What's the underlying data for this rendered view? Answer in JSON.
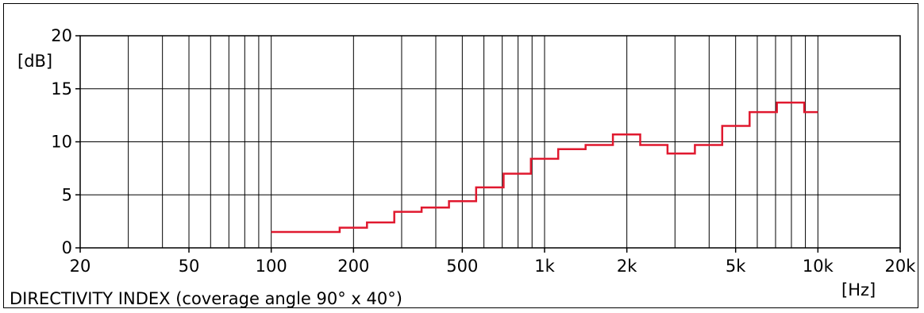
{
  "chart_data": {
    "type": "line",
    "title": "DIRECTIVITY INDEX (coverage angle 90° x 40°)",
    "xlabel": "[Hz]",
    "ylabel": "[dB]",
    "xscale": "log",
    "xlim": [
      20,
      20000
    ],
    "ylim": [
      0,
      20
    ],
    "grid": true,
    "x_ticks": [
      {
        "value": 20,
        "label": "20"
      },
      {
        "value": 50,
        "label": "50"
      },
      {
        "value": 100,
        "label": "100"
      },
      {
        "value": 200,
        "label": "200"
      },
      {
        "value": 500,
        "label": "500"
      },
      {
        "value": 1000,
        "label": "1k"
      },
      {
        "value": 2000,
        "label": "2k"
      },
      {
        "value": 5000,
        "label": "5k"
      },
      {
        "value": 10000,
        "label": "10k"
      },
      {
        "value": 20000,
        "label": "20k"
      }
    ],
    "y_ticks": [
      {
        "value": 0,
        "label": "0"
      },
      {
        "value": 5,
        "label": "5"
      },
      {
        "value": 10,
        "label": "10"
      },
      {
        "value": 15,
        "label": "15"
      },
      {
        "value": 20,
        "label": "20"
      }
    ],
    "series": [
      {
        "color": "#e0192f",
        "step": true,
        "bands": [
          {
            "x_start": 100,
            "x_end": 178,
            "y": 1.5
          },
          {
            "x_start": 178,
            "x_end": 224,
            "y": 1.9
          },
          {
            "x_start": 224,
            "x_end": 282,
            "y": 2.4
          },
          {
            "x_start": 282,
            "x_end": 355,
            "y": 3.4
          },
          {
            "x_start": 355,
            "x_end": 447,
            "y": 3.8
          },
          {
            "x_start": 447,
            "x_end": 562,
            "y": 4.4
          },
          {
            "x_start": 562,
            "x_end": 708,
            "y": 5.7
          },
          {
            "x_start": 708,
            "x_end": 891,
            "y": 7.0
          },
          {
            "x_start": 891,
            "x_end": 1122,
            "y": 8.4
          },
          {
            "x_start": 1122,
            "x_end": 1413,
            "y": 9.3
          },
          {
            "x_start": 1413,
            "x_end": 1778,
            "y": 9.7
          },
          {
            "x_start": 1778,
            "x_end": 2239,
            "y": 10.7
          },
          {
            "x_start": 2239,
            "x_end": 2818,
            "y": 9.7
          },
          {
            "x_start": 2818,
            "x_end": 3548,
            "y": 8.9
          },
          {
            "x_start": 3548,
            "x_end": 4467,
            "y": 9.7
          },
          {
            "x_start": 4467,
            "x_end": 5623,
            "y": 11.5
          },
          {
            "x_start": 5623,
            "x_end": 7079,
            "y": 12.8
          },
          {
            "x_start": 7079,
            "x_end": 8913,
            "y": 13.7
          },
          {
            "x_start": 8913,
            "x_end": 10000,
            "y": 12.8
          }
        ]
      }
    ]
  }
}
